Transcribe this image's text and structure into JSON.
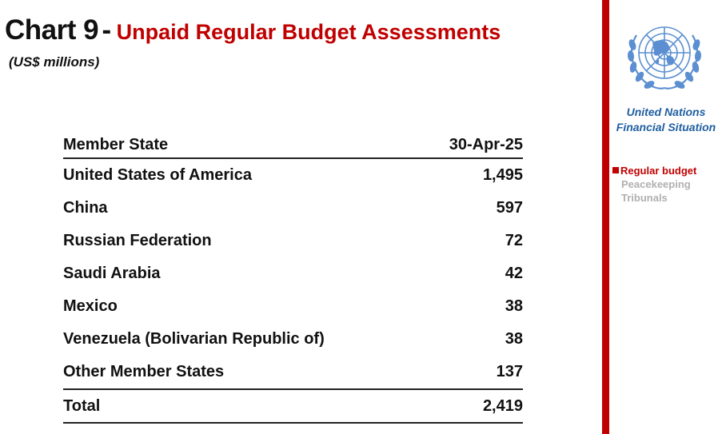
{
  "header": {
    "chart_label": "Chart 9",
    "dash": "-",
    "title": "Unpaid Regular Budget Assessments",
    "units": "(US$ millions)"
  },
  "table": {
    "col_member": "Member State",
    "col_date": "30-Apr-25",
    "rows": [
      {
        "state": "United States of America",
        "value": "1,495"
      },
      {
        "state": "China",
        "value": "597"
      },
      {
        "state": "Russian Federation",
        "value": "72"
      },
      {
        "state": "Saudi Arabia",
        "value": "42"
      },
      {
        "state": "Mexico",
        "value": "38"
      },
      {
        "state": "Venezuela (Bolivarian Republic of)",
        "value": "38"
      },
      {
        "state": "Other Member States",
        "value": "137"
      }
    ],
    "total": {
      "state": "Total",
      "value": "2,419"
    }
  },
  "sidebar": {
    "logo_icon": "un-emblem-icon",
    "title_line1": "United Nations",
    "title_line2": "Financial Situation",
    "nav": [
      {
        "label": "Regular budget",
        "active": true
      },
      {
        "label": "Peacekeeping",
        "active": false
      },
      {
        "label": "Tribunals",
        "active": false
      }
    ]
  },
  "colors": {
    "accent": "#c00000",
    "un_blue": "#1f5fa0",
    "inactive": "#b0b0b0"
  }
}
